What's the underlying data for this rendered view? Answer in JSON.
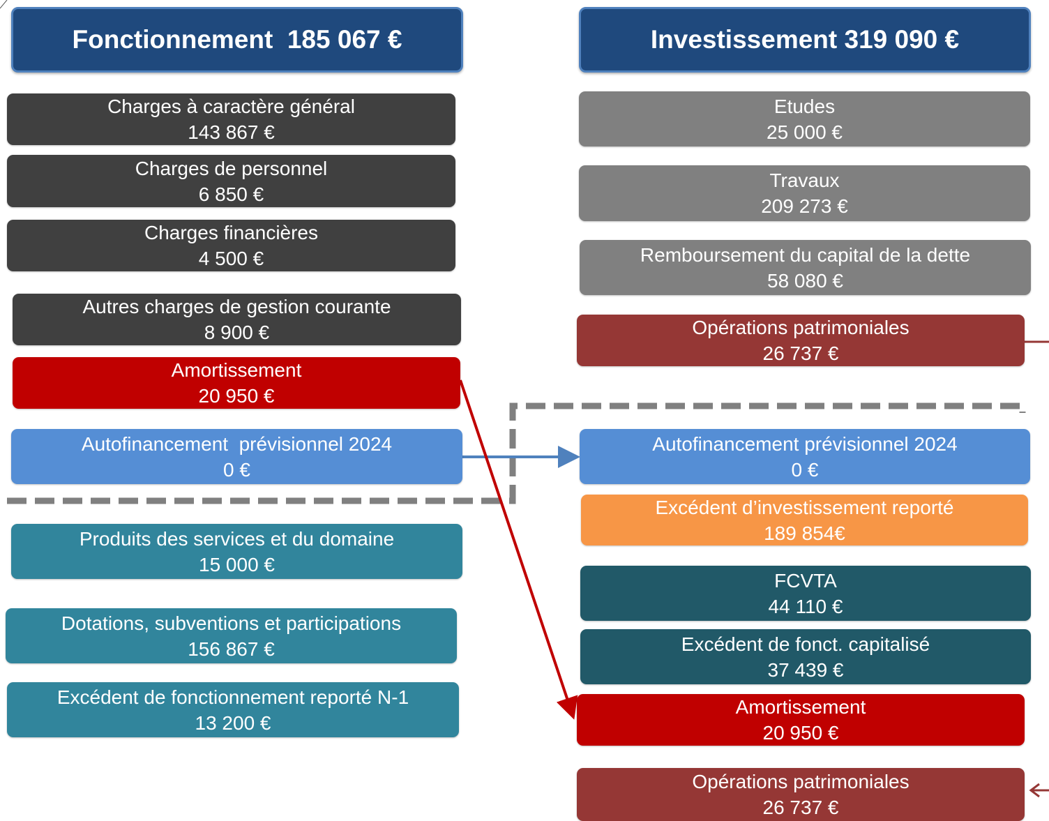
{
  "left": {
    "title": "Fonctionnement  185 067 €",
    "items": [
      {
        "label": "Charges à caractère général",
        "value": "143 867 €"
      },
      {
        "label": "Charges de personnel",
        "value": "6 850 €"
      },
      {
        "label": "Charges financières",
        "value": "4 500 €"
      },
      {
        "label": "Autres charges de gestion courante",
        "value": "8 900 €"
      },
      {
        "label": "Amortissement",
        "value": "20 950 €"
      },
      {
        "label": "Autofinancement  prévisionnel 2024",
        "value": "0 €"
      },
      {
        "label": "Produits des services et du domaine",
        "value": "15 000 €"
      },
      {
        "label": "Dotations, subventions et participations",
        "value": "156 867 €"
      },
      {
        "label": "Excédent de fonctionnement reporté N-1",
        "value": "13 200 €"
      }
    ]
  },
  "right": {
    "title": "Investissement 319 090 €",
    "items": [
      {
        "label": "Etudes",
        "value": "25 000 €"
      },
      {
        "label": "Travaux",
        "value": "209 273 €"
      },
      {
        "label": "Remboursement du capital de la dette",
        "value": "58 080 €"
      },
      {
        "label": "Opérations patrimoniales",
        "value": "26 737 €"
      },
      {
        "label": "Autofinancement prévisionnel 2024",
        "value": "0 €"
      },
      {
        "label": "Excédent d’investissement reporté",
        "value": "189 854€"
      },
      {
        "label": "FCVTA",
        "value": "44 110 €"
      },
      {
        "label": "Excédent de fonct. capitalisé",
        "value": "37 439 €"
      },
      {
        "label": "Amortissement",
        "value": "20 950 €"
      },
      {
        "label": "Opérations patrimoniales",
        "value": "26 737 €"
      }
    ]
  }
}
